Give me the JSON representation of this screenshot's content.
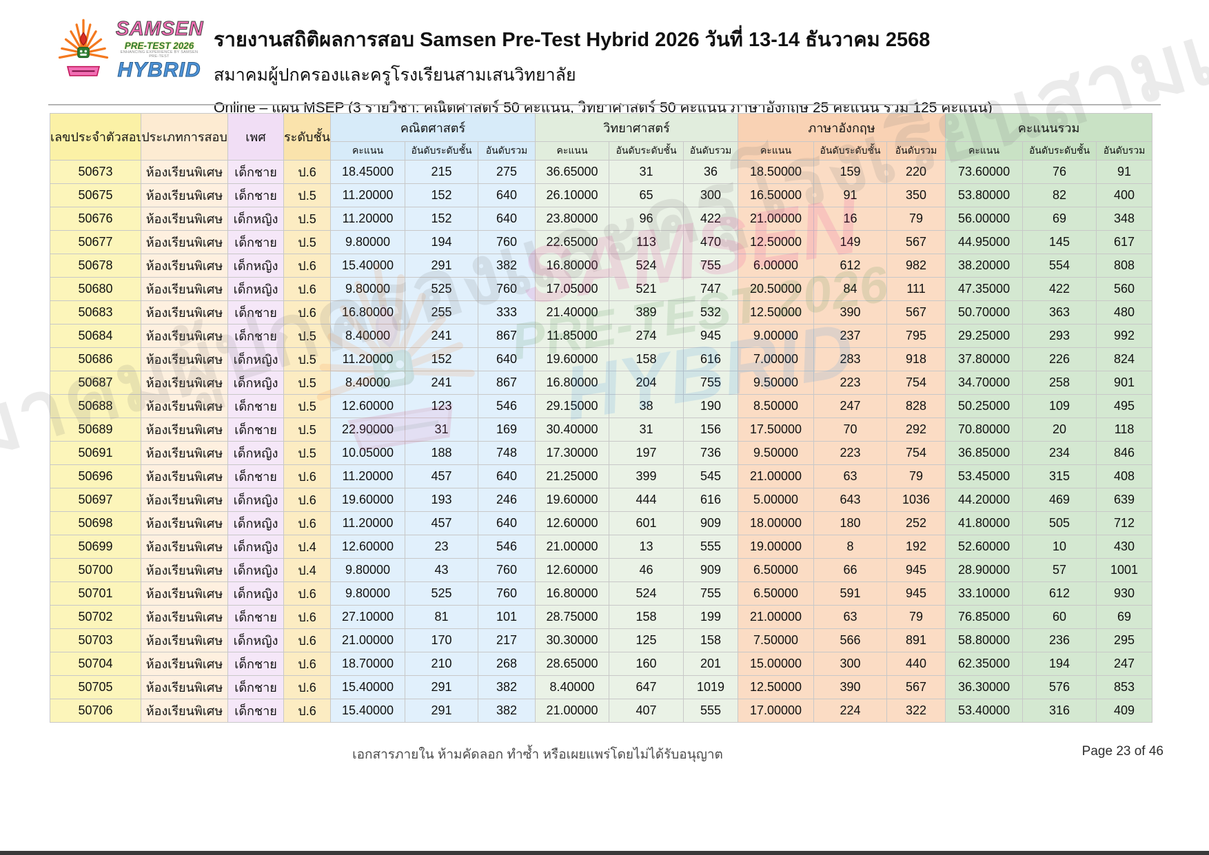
{
  "logo": {
    "samsen": "SAMSEN",
    "pretest": "PRE-TEST 2026",
    "tagline": "ENHANCING EXPERIENCE BY SAMSEN PRE-TEST",
    "hybrid": "HYBRID"
  },
  "header": {
    "title": "รายงานสถิติผลการสอบ Samsen Pre-Test Hybrid 2026 วันที่ 13-14 ธันวาคม 2568",
    "subtitle": "สมาคมผู้ปกครองและครูโรงเรียนสามเสนวิทยาลัย",
    "plan_line": "Online – แผน MSEP  (3 รายวิชา: คณิตศาสตร์ 50 คะแนน, วิทยาศาสตร์ 50 คะแนน ภาษาอังกฤษ 25 คะแนน รวม 125 คะแนน)"
  },
  "watermark": {
    "text": "สมาคมผู้ปกครองและครูโรงเรียนสามเสนวิทยาลัย"
  },
  "footer": {
    "note": "เอกสารภายใน ห้ามคัดลอก ทำซ้ำ หรือเผยแพร่โดยไม่ได้รับอนุญาต",
    "page": "Page 23 of 46"
  },
  "colors": {
    "id_col": "#fcf5ba",
    "type_col": "#fef0df",
    "gender_col": "#f5e7f8",
    "grade_col": "#fcecc2",
    "math_group": "#e1f0fc",
    "science_group": "#eaf2e6",
    "english_group": "#fbdcc4",
    "total_group": "#d4e8d1",
    "logo_pink": "#f26eb4",
    "logo_green": "#2e7d32",
    "logo_blue": "#4e93d8"
  },
  "table": {
    "columns": {
      "id": "เลขประจำตัวสอบ",
      "type": "ประเภทการสอบ",
      "gender": "เพศ",
      "grade": "ระดับชั้น"
    },
    "groups": {
      "math": "คณิตศาสตร์",
      "science": "วิทยาศาสตร์",
      "english": "ภาษาอังกฤษ",
      "total": "คะแนนรวม"
    },
    "sub_headers": [
      "คะแนน",
      "อันดับระดับชั้น",
      "อันดับรวม"
    ],
    "rows": [
      {
        "exam_id": "50673",
        "exam_type": "ห้องเรียนพิเศษ",
        "gender": "เด็กชาย",
        "grade": "ป.6",
        "math": [
          "18.45000",
          "215",
          "275"
        ],
        "science": [
          "36.65000",
          "31",
          "36"
        ],
        "english": [
          "18.50000",
          "159",
          "220"
        ],
        "total": [
          "73.60000",
          "76",
          "91"
        ]
      },
      {
        "exam_id": "50675",
        "exam_type": "ห้องเรียนพิเศษ",
        "gender": "เด็กชาย",
        "grade": "ป.5",
        "math": [
          "11.20000",
          "152",
          "640"
        ],
        "science": [
          "26.10000",
          "65",
          "300"
        ],
        "english": [
          "16.50000",
          "91",
          "350"
        ],
        "total": [
          "53.80000",
          "82",
          "400"
        ]
      },
      {
        "exam_id": "50676",
        "exam_type": "ห้องเรียนพิเศษ",
        "gender": "เด็กหญิง",
        "grade": "ป.5",
        "math": [
          "11.20000",
          "152",
          "640"
        ],
        "science": [
          "23.80000",
          "96",
          "422"
        ],
        "english": [
          "21.00000",
          "16",
          "79"
        ],
        "total": [
          "56.00000",
          "69",
          "348"
        ]
      },
      {
        "exam_id": "50677",
        "exam_type": "ห้องเรียนพิเศษ",
        "gender": "เด็กชาย",
        "grade": "ป.5",
        "math": [
          "9.80000",
          "194",
          "760"
        ],
        "science": [
          "22.65000",
          "113",
          "470"
        ],
        "english": [
          "12.50000",
          "149",
          "567"
        ],
        "total": [
          "44.95000",
          "145",
          "617"
        ]
      },
      {
        "exam_id": "50678",
        "exam_type": "ห้องเรียนพิเศษ",
        "gender": "เด็กหญิง",
        "grade": "ป.6",
        "math": [
          "15.40000",
          "291",
          "382"
        ],
        "science": [
          "16.80000",
          "524",
          "755"
        ],
        "english": [
          "6.00000",
          "612",
          "982"
        ],
        "total": [
          "38.20000",
          "554",
          "808"
        ]
      },
      {
        "exam_id": "50680",
        "exam_type": "ห้องเรียนพิเศษ",
        "gender": "เด็กหญิง",
        "grade": "ป.6",
        "math": [
          "9.80000",
          "525",
          "760"
        ],
        "science": [
          "17.05000",
          "521",
          "747"
        ],
        "english": [
          "20.50000",
          "84",
          "111"
        ],
        "total": [
          "47.35000",
          "422",
          "560"
        ]
      },
      {
        "exam_id": "50683",
        "exam_type": "ห้องเรียนพิเศษ",
        "gender": "เด็กชาย",
        "grade": "ป.6",
        "math": [
          "16.80000",
          "255",
          "333"
        ],
        "science": [
          "21.40000",
          "389",
          "532"
        ],
        "english": [
          "12.50000",
          "390",
          "567"
        ],
        "total": [
          "50.70000",
          "363",
          "480"
        ]
      },
      {
        "exam_id": "50684",
        "exam_type": "ห้องเรียนพิเศษ",
        "gender": "เด็กชาย",
        "grade": "ป.5",
        "math": [
          "8.40000",
          "241",
          "867"
        ],
        "science": [
          "11.85000",
          "274",
          "945"
        ],
        "english": [
          "9.00000",
          "237",
          "795"
        ],
        "total": [
          "29.25000",
          "293",
          "992"
        ]
      },
      {
        "exam_id": "50686",
        "exam_type": "ห้องเรียนพิเศษ",
        "gender": "เด็กหญิง",
        "grade": "ป.5",
        "math": [
          "11.20000",
          "152",
          "640"
        ],
        "science": [
          "19.60000",
          "158",
          "616"
        ],
        "english": [
          "7.00000",
          "283",
          "918"
        ],
        "total": [
          "37.80000",
          "226",
          "824"
        ]
      },
      {
        "exam_id": "50687",
        "exam_type": "ห้องเรียนพิเศษ",
        "gender": "เด็กหญิง",
        "grade": "ป.5",
        "math": [
          "8.40000",
          "241",
          "867"
        ],
        "science": [
          "16.80000",
          "204",
          "755"
        ],
        "english": [
          "9.50000",
          "223",
          "754"
        ],
        "total": [
          "34.70000",
          "258",
          "901"
        ]
      },
      {
        "exam_id": "50688",
        "exam_type": "ห้องเรียนพิเศษ",
        "gender": "เด็กชาย",
        "grade": "ป.5",
        "math": [
          "12.60000",
          "123",
          "546"
        ],
        "science": [
          "29.15000",
          "38",
          "190"
        ],
        "english": [
          "8.50000",
          "247",
          "828"
        ],
        "total": [
          "50.25000",
          "109",
          "495"
        ]
      },
      {
        "exam_id": "50689",
        "exam_type": "ห้องเรียนพิเศษ",
        "gender": "เด็กชาย",
        "grade": "ป.5",
        "math": [
          "22.90000",
          "31",
          "169"
        ],
        "science": [
          "30.40000",
          "31",
          "156"
        ],
        "english": [
          "17.50000",
          "70",
          "292"
        ],
        "total": [
          "70.80000",
          "20",
          "118"
        ]
      },
      {
        "exam_id": "50691",
        "exam_type": "ห้องเรียนพิเศษ",
        "gender": "เด็กหญิง",
        "grade": "ป.5",
        "math": [
          "10.05000",
          "188",
          "748"
        ],
        "science": [
          "17.30000",
          "197",
          "736"
        ],
        "english": [
          "9.50000",
          "223",
          "754"
        ],
        "total": [
          "36.85000",
          "234",
          "846"
        ]
      },
      {
        "exam_id": "50696",
        "exam_type": "ห้องเรียนพิเศษ",
        "gender": "เด็กชาย",
        "grade": "ป.6",
        "math": [
          "11.20000",
          "457",
          "640"
        ],
        "science": [
          "21.25000",
          "399",
          "545"
        ],
        "english": [
          "21.00000",
          "63",
          "79"
        ],
        "total": [
          "53.45000",
          "315",
          "408"
        ]
      },
      {
        "exam_id": "50697",
        "exam_type": "ห้องเรียนพิเศษ",
        "gender": "เด็กหญิง",
        "grade": "ป.6",
        "math": [
          "19.60000",
          "193",
          "246"
        ],
        "science": [
          "19.60000",
          "444",
          "616"
        ],
        "english": [
          "5.00000",
          "643",
          "1036"
        ],
        "total": [
          "44.20000",
          "469",
          "639"
        ]
      },
      {
        "exam_id": "50698",
        "exam_type": "ห้องเรียนพิเศษ",
        "gender": "เด็กหญิง",
        "grade": "ป.6",
        "math": [
          "11.20000",
          "457",
          "640"
        ],
        "science": [
          "12.60000",
          "601",
          "909"
        ],
        "english": [
          "18.00000",
          "180",
          "252"
        ],
        "total": [
          "41.80000",
          "505",
          "712"
        ]
      },
      {
        "exam_id": "50699",
        "exam_type": "ห้องเรียนพิเศษ",
        "gender": "เด็กหญิง",
        "grade": "ป.4",
        "math": [
          "12.60000",
          "23",
          "546"
        ],
        "science": [
          "21.00000",
          "13",
          "555"
        ],
        "english": [
          "19.00000",
          "8",
          "192"
        ],
        "total": [
          "52.60000",
          "10",
          "430"
        ]
      },
      {
        "exam_id": "50700",
        "exam_type": "ห้องเรียนพิเศษ",
        "gender": "เด็กหญิง",
        "grade": "ป.4",
        "math": [
          "9.80000",
          "43",
          "760"
        ],
        "science": [
          "12.60000",
          "46",
          "909"
        ],
        "english": [
          "6.50000",
          "66",
          "945"
        ],
        "total": [
          "28.90000",
          "57",
          "1001"
        ]
      },
      {
        "exam_id": "50701",
        "exam_type": "ห้องเรียนพิเศษ",
        "gender": "เด็กหญิง",
        "grade": "ป.6",
        "math": [
          "9.80000",
          "525",
          "760"
        ],
        "science": [
          "16.80000",
          "524",
          "755"
        ],
        "english": [
          "6.50000",
          "591",
          "945"
        ],
        "total": [
          "33.10000",
          "612",
          "930"
        ]
      },
      {
        "exam_id": "50702",
        "exam_type": "ห้องเรียนพิเศษ",
        "gender": "เด็กชาย",
        "grade": "ป.6",
        "math": [
          "27.10000",
          "81",
          "101"
        ],
        "science": [
          "28.75000",
          "158",
          "199"
        ],
        "english": [
          "21.00000",
          "63",
          "79"
        ],
        "total": [
          "76.85000",
          "60",
          "69"
        ]
      },
      {
        "exam_id": "50703",
        "exam_type": "ห้องเรียนพิเศษ",
        "gender": "เด็กหญิง",
        "grade": "ป.6",
        "math": [
          "21.00000",
          "170",
          "217"
        ],
        "science": [
          "30.30000",
          "125",
          "158"
        ],
        "english": [
          "7.50000",
          "566",
          "891"
        ],
        "total": [
          "58.80000",
          "236",
          "295"
        ]
      },
      {
        "exam_id": "50704",
        "exam_type": "ห้องเรียนพิเศษ",
        "gender": "เด็กชาย",
        "grade": "ป.6",
        "math": [
          "18.70000",
          "210",
          "268"
        ],
        "science": [
          "28.65000",
          "160",
          "201"
        ],
        "english": [
          "15.00000",
          "300",
          "440"
        ],
        "total": [
          "62.35000",
          "194",
          "247"
        ]
      },
      {
        "exam_id": "50705",
        "exam_type": "ห้องเรียนพิเศษ",
        "gender": "เด็กชาย",
        "grade": "ป.6",
        "math": [
          "15.40000",
          "291",
          "382"
        ],
        "science": [
          "8.40000",
          "647",
          "1019"
        ],
        "english": [
          "12.50000",
          "390",
          "567"
        ],
        "total": [
          "36.30000",
          "576",
          "853"
        ]
      },
      {
        "exam_id": "50706",
        "exam_type": "ห้องเรียนพิเศษ",
        "gender": "เด็กชาย",
        "grade": "ป.6",
        "math": [
          "15.40000",
          "291",
          "382"
        ],
        "science": [
          "21.00000",
          "407",
          "555"
        ],
        "english": [
          "17.00000",
          "224",
          "322"
        ],
        "total": [
          "53.40000",
          "316",
          "409"
        ]
      }
    ]
  }
}
